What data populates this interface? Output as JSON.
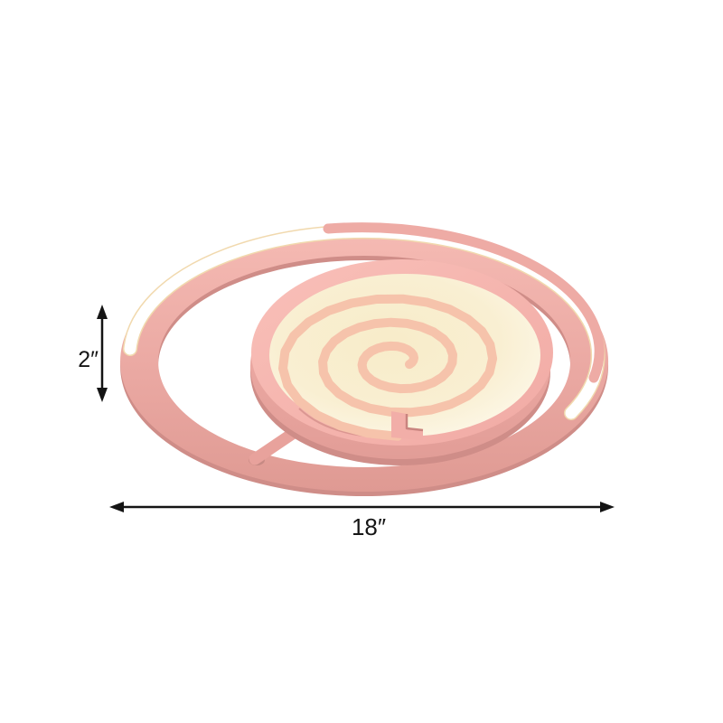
{
  "diagram": {
    "type": "product-dimension-diagram",
    "product": "lollipop flush mount ceiling light",
    "labels": {
      "height": "2″",
      "width": "18″"
    },
    "colors": {
      "background": "#ffffff",
      "ring_pink_light": "#f5bab3",
      "ring_pink": "#e8a49e",
      "ring_pink_dark": "#cf8d88",
      "led_band_white": "#ffffff",
      "warm_glow": "#f1d9ae",
      "drum_wall_pink": "#efaca6",
      "drum_top_pink": "#f6b6af",
      "panel_cream": "#f9efd2",
      "panel_cream_edge": "#fffdf4",
      "spiral_salmon": "#f6c3ab",
      "notch_shadow": "#c9847f",
      "dimension_line": "#141414"
    }
  }
}
